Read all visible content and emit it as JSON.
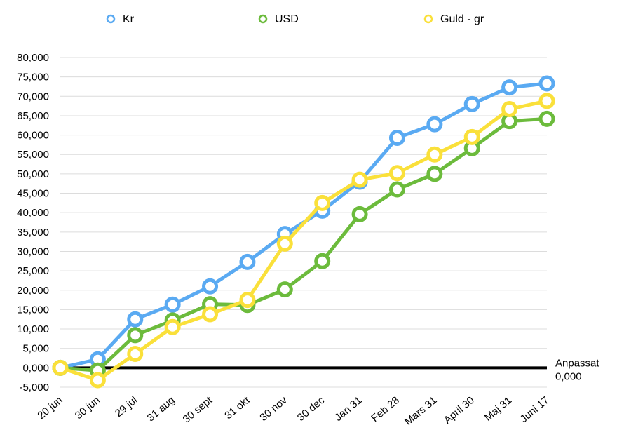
{
  "chart_data": {
    "type": "line",
    "title": "",
    "xlabel": "",
    "ylabel": "",
    "categories": [
      "20 jun",
      "30 jun",
      "29 jul",
      "31 aug",
      "30 sept",
      "31 okt",
      "30 nov",
      "30 dec",
      "Jan 31",
      "Feb 28",
      "Mars 31",
      "April 30",
      "Maj 31",
      "Juni 17"
    ],
    "ylim": [
      -5000,
      80000
    ],
    "yticks": [
      -5000,
      0,
      5000,
      10000,
      15000,
      20000,
      25000,
      30000,
      35000,
      40000,
      45000,
      50000,
      55000,
      60000,
      65000,
      70000,
      75000,
      80000
    ],
    "ytick_labels": [
      "-5,000",
      "0,000",
      "5,000",
      "10,000",
      "15,000",
      "20,000",
      "25,000",
      "30,000",
      "35,000",
      "40,000",
      "45,000",
      "50,000",
      "55,000",
      "60,000",
      "65,000",
      "70,000",
      "75,000",
      "80,000"
    ],
    "grid": true,
    "legend_position": "top",
    "series": [
      {
        "name": "Kr",
        "color": "#5aaaf2",
        "values": [
          0,
          2200,
          12500,
          16300,
          21000,
          27300,
          34500,
          40500,
          48000,
          59300,
          62800,
          68000,
          72300,
          73300
        ]
      },
      {
        "name": "USD",
        "color": "#6cbb3c",
        "values": [
          0,
          -700,
          8400,
          12200,
          16400,
          16200,
          20200,
          27500,
          39600,
          46000,
          50000,
          56600,
          63600,
          64200
        ]
      },
      {
        "name": "Guld - gr",
        "color": "#fae03a",
        "values": [
          0,
          -3200,
          3600,
          10500,
          13800,
          17500,
          32000,
          42500,
          48500,
          50200,
          55000,
          59500,
          66700,
          68800
        ]
      }
    ],
    "reference_line": {
      "value": 0,
      "label_line1": "Anpassat",
      "label_line2": "0,000",
      "color": "#000000"
    }
  }
}
